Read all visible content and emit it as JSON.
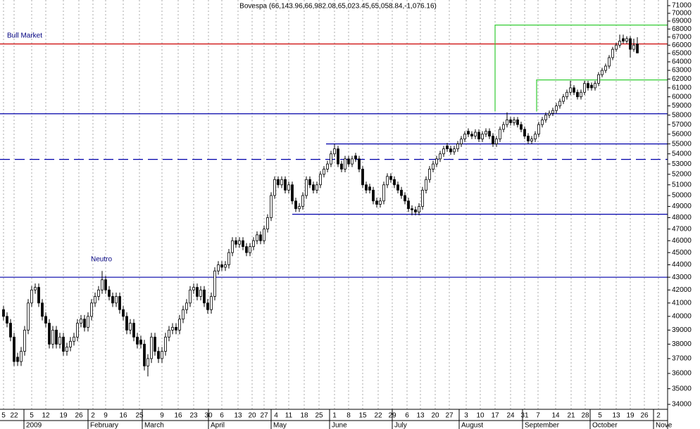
{
  "chart_data": {
    "type": "candlestick",
    "title": "Bovespa (66,143.96,66,982.08,65,023.45,65,058.84,-1,076.16)",
    "log": true,
    "grid": true,
    "ylim": [
      34000,
      71000
    ],
    "yticks": [
      34000,
      35000,
      36000,
      37000,
      38000,
      39000,
      40000,
      41000,
      42000,
      43000,
      44000,
      45000,
      46000,
      47000,
      48000,
      49000,
      50000,
      51000,
      52000,
      53000,
      54000,
      55000,
      56000,
      57000,
      58000,
      59000,
      60000,
      61000,
      62000,
      63000,
      64000,
      65000,
      66000,
      67000,
      68000,
      69000,
      70000,
      71000
    ],
    "xtick_labels": [
      "5",
      "22",
      "5",
      "12",
      "19",
      "26",
      "2",
      "9",
      "16",
      "25",
      "9",
      "16",
      "23",
      "30",
      "6",
      "13",
      "20",
      "27",
      "4",
      "11",
      "18",
      "25",
      "1",
      "8",
      "15",
      "22",
      "29",
      "6",
      "13",
      "20",
      "27",
      "3",
      "10",
      "17",
      "24",
      "31",
      "7",
      "14",
      "21",
      "28",
      "5",
      "13",
      "19",
      "26",
      "2"
    ],
    "month_labels": [
      "2009",
      "February",
      "March",
      "April",
      "May",
      "June",
      "July",
      "August",
      "September",
      "October",
      "Nove"
    ],
    "up_color": "#ffffff",
    "down_color": "#000000",
    "annotations": [
      "Bull Market",
      "Neutro"
    ],
    "levels": [
      {
        "value": 66150,
        "color": "#cc0000",
        "dashed": false
      },
      {
        "value": 58150,
        "color": "#0000aa",
        "dashed": false
      },
      {
        "value": 43000,
        "color": "#0000aa",
        "dashed": false
      },
      {
        "value": 53450,
        "color": "#0000aa",
        "dashed": true
      },
      {
        "value": 55000,
        "color": "#0000aa",
        "dashed": false
      },
      {
        "value": 48300,
        "color": "#0000aa",
        "dashed": false
      }
    ],
    "steps": [
      {
        "base": 58400,
        "value": 68500,
        "color": "#33cc33"
      },
      {
        "base": 58400,
        "value": 61900,
        "color": "#33cc33"
      }
    ],
    "candles": [
      [
        40500,
        40800,
        39700,
        40000
      ],
      [
        40000,
        40300,
        39200,
        39500
      ],
      [
        39500,
        39800,
        38200,
        38500
      ],
      [
        38500,
        38800,
        36500,
        36800
      ],
      [
        37100,
        37400,
        36500,
        36800
      ],
      [
        36800,
        37800,
        36500,
        37500
      ],
      [
        37500,
        39300,
        37200,
        39000
      ],
      [
        39000,
        41300,
        38700,
        41000
      ],
      [
        41000,
        42300,
        40700,
        42000
      ],
      [
        42000,
        42500,
        41700,
        42200
      ],
      [
        42200,
        42500,
        40700,
        41000
      ],
      [
        41000,
        41300,
        39700,
        40000
      ],
      [
        40000,
        40300,
        39200,
        39500
      ],
      [
        39500,
        39800,
        37700,
        38000
      ],
      [
        38000,
        39300,
        37700,
        39000
      ],
      [
        39000,
        39300,
        37700,
        38000
      ],
      [
        38000,
        38800,
        37700,
        38500
      ],
      [
        38500,
        38800,
        37200,
        37500
      ],
      [
        37500,
        38100,
        37200,
        37800
      ],
      [
        37800,
        38500,
        37500,
        38200
      ],
      [
        38200,
        38800,
        37900,
        38500
      ],
      [
        38500,
        39800,
        38200,
        39500
      ],
      [
        39500,
        40100,
        39200,
        39800
      ],
      [
        39800,
        40100,
        38900,
        39200
      ],
      [
        39200,
        40300,
        38900,
        40000
      ],
      [
        40000,
        41300,
        39700,
        41000
      ],
      [
        41000,
        41800,
        40700,
        41500
      ],
      [
        41500,
        42300,
        41200,
        42000
      ],
      [
        42000,
        43500,
        41700,
        42800
      ],
      [
        42800,
        43100,
        41700,
        42000
      ],
      [
        42000,
        42300,
        41200,
        41500
      ],
      [
        41500,
        41800,
        40700,
        41000
      ],
      [
        41000,
        41800,
        40700,
        41500
      ],
      [
        41500,
        41800,
        40200,
        40500
      ],
      [
        40500,
        40800,
        39700,
        40000
      ],
      [
        40000,
        40300,
        38700,
        39000
      ],
      [
        39000,
        39800,
        38700,
        39500
      ],
      [
        39500,
        39800,
        38200,
        38500
      ],
      [
        38500,
        38800,
        37700,
        38000
      ],
      [
        38300,
        38600,
        37700,
        38000
      ],
      [
        38000,
        38300,
        36200,
        36500
      ],
      [
        36500,
        37300,
        35800,
        37000
      ],
      [
        37000,
        38800,
        36700,
        38500
      ],
      [
        38500,
        38800,
        37200,
        37500
      ],
      [
        37500,
        37800,
        36700,
        37000
      ],
      [
        37000,
        37800,
        36700,
        37500
      ],
      [
        37500,
        38800,
        37200,
        38500
      ],
      [
        38500,
        39300,
        38200,
        39000
      ],
      [
        39000,
        39500,
        38700,
        39200
      ],
      [
        39200,
        39500,
        38700,
        39000
      ],
      [
        39000,
        40100,
        38700,
        39800
      ],
      [
        39800,
        40800,
        39500,
        40500
      ],
      [
        40500,
        41300,
        40200,
        41000
      ],
      [
        41000,
        42300,
        40700,
        42000
      ],
      [
        42000,
        42500,
        41700,
        42200
      ],
      [
        42200,
        42500,
        41200,
        41500
      ],
      [
        41500,
        42300,
        41200,
        42000
      ],
      [
        42000,
        42300,
        40700,
        41000
      ],
      [
        41000,
        41300,
        40200,
        40500
      ],
      [
        40500,
        41800,
        40200,
        41500
      ],
      [
        41500,
        43800,
        41200,
        43500
      ],
      [
        43500,
        44300,
        43200,
        44000
      ],
      [
        44000,
        44300,
        43500,
        43800
      ],
      [
        43800,
        44300,
        43500,
        44000
      ],
      [
        44000,
        45300,
        43700,
        45000
      ],
      [
        45000,
        46300,
        44700,
        46000
      ],
      [
        46000,
        46300,
        45400,
        45700
      ],
      [
        45700,
        46300,
        45400,
        46000
      ],
      [
        46000,
        46300,
        45200,
        45500
      ],
      [
        45500,
        45800,
        44700,
        45000
      ],
      [
        45000,
        45800,
        44700,
        45500
      ],
      [
        45500,
        46300,
        45200,
        46000
      ],
      [
        46000,
        46800,
        45700,
        46500
      ],
      [
        46500,
        46800,
        45700,
        46000
      ],
      [
        46000,
        47300,
        45700,
        47000
      ],
      [
        47000,
        48300,
        46700,
        48000
      ],
      [
        48000,
        50300,
        47700,
        50000
      ],
      [
        50000,
        51800,
        49700,
        51500
      ],
      [
        51500,
        51800,
        50700,
        51000
      ],
      [
        51000,
        51800,
        50700,
        51500
      ],
      [
        51500,
        51800,
        50200,
        50500
      ],
      [
        50500,
        51300,
        50200,
        51000
      ],
      [
        51000,
        51300,
        49200,
        49500
      ],
      [
        49500,
        49800,
        48500,
        48800
      ],
      [
        48800,
        49300,
        48500,
        49000
      ],
      [
        49000,
        50300,
        48700,
        50000
      ],
      [
        50000,
        51800,
        49700,
        51500
      ],
      [
        51500,
        51800,
        50700,
        51000
      ],
      [
        51000,
        51300,
        50200,
        50500
      ],
      [
        50500,
        51300,
        50200,
        51000
      ],
      [
        51000,
        52300,
        50700,
        52000
      ],
      [
        52000,
        52800,
        51700,
        52500
      ],
      [
        52500,
        53300,
        52200,
        53000
      ],
      [
        53000,
        54300,
        52700,
        54000
      ],
      [
        54000,
        55000,
        53700,
        54500
      ],
      [
        54500,
        54800,
        52700,
        53000
      ],
      [
        53000,
        53300,
        52200,
        52500
      ],
      [
        52500,
        53800,
        52200,
        53500
      ],
      [
        53500,
        53800,
        52700,
        53000
      ],
      [
        53000,
        53800,
        52700,
        53500
      ],
      [
        53800,
        54100,
        53200,
        53500
      ],
      [
        53500,
        53800,
        52200,
        52500
      ],
      [
        52500,
        52800,
        50700,
        51000
      ],
      [
        51000,
        51300,
        50200,
        50500
      ],
      [
        50800,
        51100,
        50200,
        50500
      ],
      [
        50500,
        50800,
        49200,
        49500
      ],
      [
        49500,
        49800,
        48900,
        49200
      ],
      [
        49200,
        49800,
        48900,
        49500
      ],
      [
        49500,
        51300,
        49200,
        51000
      ],
      [
        51000,
        52100,
        50700,
        51800
      ],
      [
        51800,
        52100,
        51200,
        51500
      ],
      [
        51500,
        51800,
        50700,
        51000
      ],
      [
        51000,
        51300,
        50200,
        50500
      ],
      [
        50500,
        50800,
        49700,
        50000
      ],
      [
        50000,
        50300,
        49200,
        49500
      ],
      [
        49500,
        49800,
        48500,
        48800
      ],
      [
        48800,
        49100,
        48200,
        48700
      ],
      [
        48700,
        49000,
        48200,
        48500
      ],
      [
        48500,
        49300,
        48200,
        49000
      ],
      [
        49000,
        50800,
        48700,
        50500
      ],
      [
        50500,
        51800,
        50200,
        51500
      ],
      [
        51500,
        52800,
        51200,
        52500
      ],
      [
        52500,
        53300,
        52200,
        53000
      ],
      [
        53000,
        53800,
        52700,
        53500
      ],
      [
        53500,
        54300,
        53200,
        54000
      ],
      [
        54000,
        54800,
        53700,
        54500
      ],
      [
        54800,
        55100,
        54200,
        54500
      ],
      [
        54500,
        54800,
        53900,
        54200
      ],
      [
        54200,
        54800,
        53900,
        54500
      ],
      [
        54500,
        55300,
        54200,
        55000
      ],
      [
        55000,
        55800,
        54700,
        55500
      ],
      [
        55500,
        56300,
        55200,
        56000
      ],
      [
        56300,
        56600,
        55700,
        56000
      ],
      [
        56000,
        56300,
        55500,
        55800
      ],
      [
        55800,
        56500,
        55500,
        56200
      ],
      [
        56200,
        56500,
        55200,
        55500
      ],
      [
        55500,
        56300,
        55200,
        56000
      ],
      [
        56000,
        56600,
        55700,
        56300
      ],
      [
        56300,
        56600,
        55500,
        55800
      ],
      [
        55800,
        56100,
        54700,
        55000
      ],
      [
        55000,
        55800,
        54700,
        55500
      ],
      [
        55500,
        56800,
        55200,
        56500
      ],
      [
        56500,
        57300,
        56200,
        57000
      ],
      [
        57000,
        58300,
        56700,
        57500
      ],
      [
        57500,
        57800,
        56900,
        57200
      ],
      [
        57200,
        57800,
        56900,
        57500
      ],
      [
        57500,
        57800,
        56700,
        57000
      ],
      [
        57000,
        57300,
        56200,
        56500
      ],
      [
        56500,
        56800,
        55500,
        55800
      ],
      [
        55800,
        56100,
        55000,
        55300
      ],
      [
        55300,
        55800,
        55000,
        55500
      ],
      [
        55500,
        56300,
        55200,
        56000
      ],
      [
        56000,
        57300,
        55700,
        57000
      ],
      [
        57000,
        57800,
        56700,
        57500
      ],
      [
        57500,
        58300,
        57200,
        58000
      ],
      [
        58000,
        58500,
        57700,
        58200
      ],
      [
        58200,
        58800,
        57900,
        58500
      ],
      [
        58500,
        59300,
        58200,
        59000
      ],
      [
        59000,
        59800,
        58700,
        59500
      ],
      [
        59500,
        60300,
        59200,
        60000
      ],
      [
        60000,
        60800,
        59700,
        60500
      ],
      [
        60500,
        61800,
        60200,
        61000
      ],
      [
        61000,
        61300,
        60200,
        60500
      ],
      [
        60500,
        60800,
        59700,
        60000
      ],
      [
        60000,
        60800,
        59700,
        60500
      ],
      [
        60500,
        61800,
        60200,
        61500
      ],
      [
        61500,
        61800,
        60700,
        61000
      ],
      [
        61300,
        61600,
        60700,
        61000
      ],
      [
        61000,
        61800,
        60700,
        61500
      ],
      [
        61500,
        62800,
        61200,
        62500
      ],
      [
        62500,
        63300,
        62200,
        63000
      ],
      [
        63000,
        63800,
        62700,
        63500
      ],
      [
        63500,
        64800,
        63200,
        64500
      ],
      [
        64500,
        65800,
        64200,
        65500
      ],
      [
        65500,
        66300,
        65200,
        66000
      ],
      [
        66000,
        67300,
        65700,
        66500
      ],
      [
        66800,
        67300,
        66200,
        66500
      ],
      [
        66500,
        67100,
        66200,
        66800
      ],
      [
        66800,
        67100,
        64500,
        65500
      ],
      [
        65500,
        66800,
        65200,
        66000
      ],
      [
        66143.96,
        66982.08,
        65023.45,
        65058.84
      ]
    ]
  }
}
